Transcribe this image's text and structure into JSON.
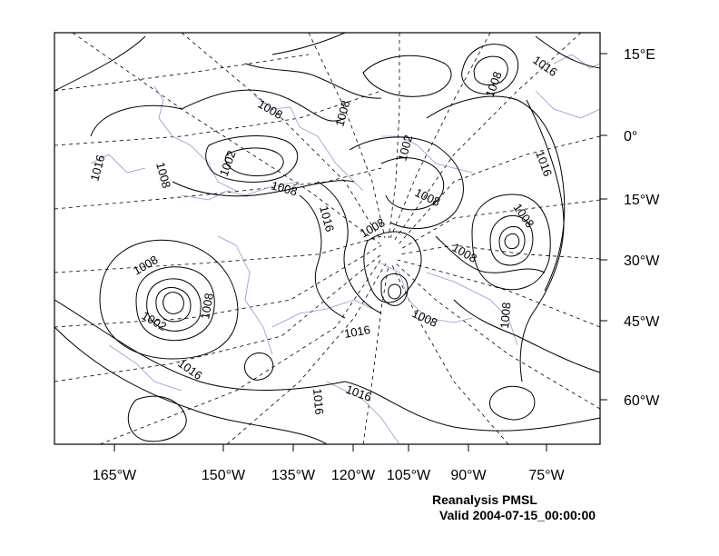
{
  "title": "Reanalysis PMSL",
  "subtitle": "Valid 2004-07-15_00:00:00",
  "colors": {
    "isobar": "#000000",
    "coastline": "#a88bd8",
    "graticule": "#000000",
    "background": "#ffffff"
  },
  "lon_labels": [
    "165°W",
    "150°W",
    "135°W",
    "120°W",
    "105°W",
    "90°W",
    "75°W"
  ],
  "lat_labels": [
    "15°E",
    "0°",
    "15°W",
    "30°W",
    "45°W",
    "60°W"
  ],
  "contour_labels": [
    "1008",
    "1008",
    "1016",
    "1008",
    "1002",
    "1008",
    "1002",
    "1008",
    "1016",
    "1008",
    "1008",
    "1016",
    "1008",
    "1008",
    "1002",
    "1008",
    "1016",
    "1008",
    "1016",
    "1016",
    "1016",
    "1008"
  ]
}
